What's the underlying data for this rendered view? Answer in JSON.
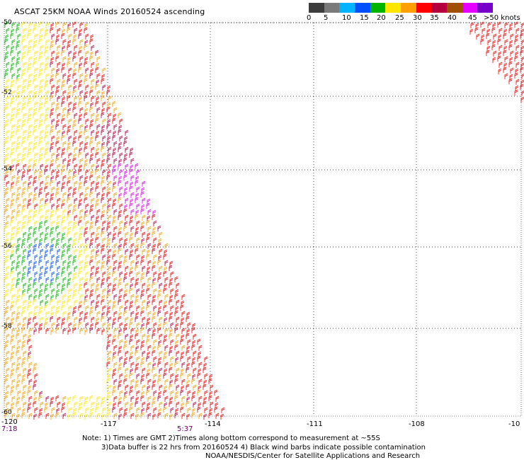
{
  "title": "ASCAT 25KM NOAA Winds 20160524 ascending",
  "legend": {
    "labels": [
      "0",
      "5",
      "10",
      "15",
      "20",
      "25",
      "30",
      "35",
      "40",
      "45",
      ">50 knots"
    ],
    "colors": [
      "#3c3c3c",
      "#7a7a7a",
      "#00b4ff",
      "#0050ff",
      "#00b400",
      "#ffe600",
      "#ffa000",
      "#ff0000",
      "#b4003c",
      "#a05000",
      "#e600ff",
      "#7800c8"
    ]
  },
  "axes": {
    "lon_labels": [
      "-120",
      "-117",
      "-114",
      "-111",
      "-108",
      "-10"
    ],
    "lat_labels": [
      "-50",
      "-52",
      "-54",
      "-56",
      "-58",
      "-60"
    ]
  },
  "times": [
    "7:18",
    "5:37"
  ],
  "notes": [
    "Note: 1) Times are GMT 2)Times along bottom correspond to measurement at ~55S",
    "3)Data buffer is 22 hrs from 20160524 4) Black wind barbs indicate possible contamination",
    "NOAA/NESDIS/Center for Satellite Applications and Research"
  ]
}
